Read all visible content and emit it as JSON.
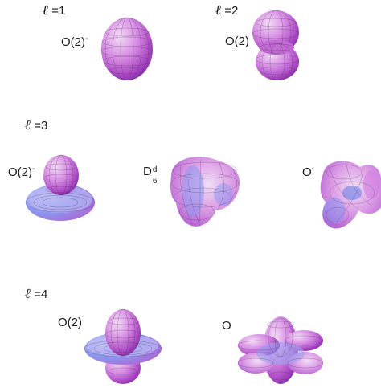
{
  "rows": [
    {
      "l_symbol": "ℓ",
      "l_value": "=1"
    },
    {
      "l_symbol": "ℓ",
      "l_value": "=2"
    },
    {
      "l_symbol": "ℓ",
      "l_value": "=3"
    },
    {
      "l_symbol": "ℓ",
      "l_value": "=4"
    }
  ],
  "groups": {
    "g1": {
      "base": "O(2)",
      "sup": "-"
    },
    "g2": {
      "base": "O(2)"
    },
    "g3": {
      "base": "O(2)",
      "sup": "-"
    },
    "g4": {
      "base": "D",
      "sup": "d",
      "sub": "6"
    },
    "g5": {
      "base": "O",
      "sup": "-"
    },
    "g6": {
      "base": "O(2)"
    },
    "g7": {
      "base": "O"
    }
  },
  "colors": {
    "surface_light": "#e9c4ee",
    "surface_mid": "#c86fd8",
    "surface_dark": "#8a2fae",
    "surface_blue": "#7f8ff2",
    "mesh": "#4a2a55"
  }
}
